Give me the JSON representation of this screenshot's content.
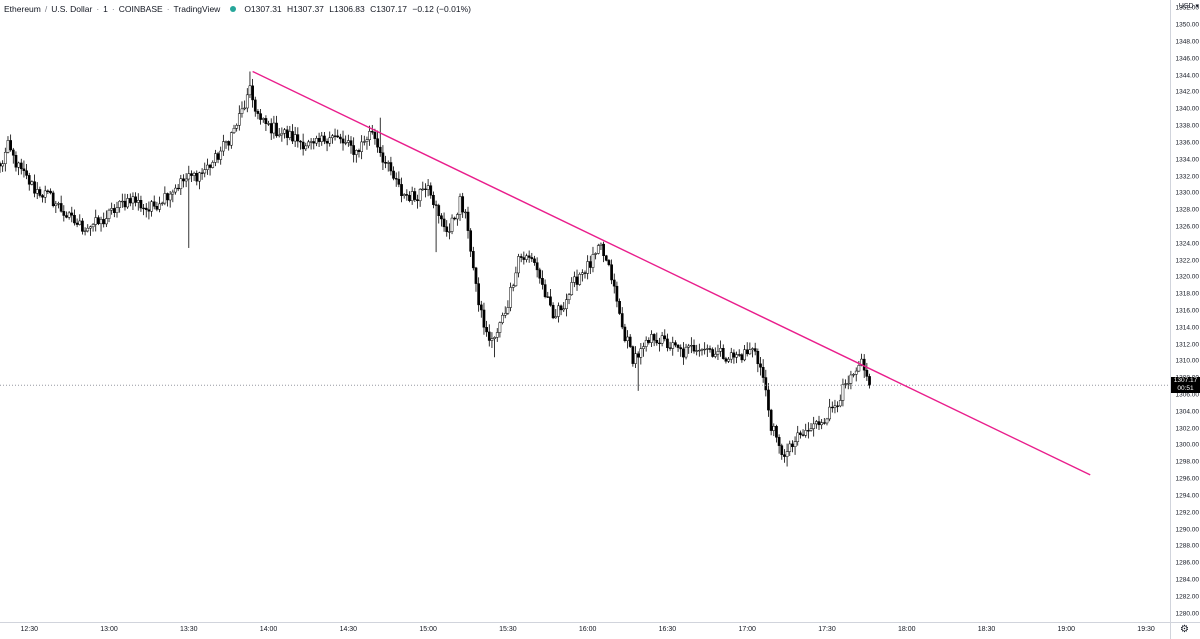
{
  "header": {
    "symbol": "Ethereum",
    "quote": "U.S. Dollar",
    "interval": "1",
    "exchange": "COINBASE",
    "source": "TradingView",
    "ohlc": {
      "open": "O1307.31",
      "high": "H1307.37",
      "low": "L1306.83",
      "close": "C1307.17",
      "change": "−0.12 (−0.01%)"
    }
  },
  "price_scale": {
    "currency": "USD",
    "last_price": "1307.17",
    "countdown": "00:51"
  },
  "colors": {
    "trendline": "#e91e8c",
    "candle": "#000000",
    "status_dot": "#26a69a",
    "last_price_line": "#9598a1"
  },
  "chart_data": {
    "type": "candlestick",
    "interval_minutes": 1,
    "x_range": [
      "12:19",
      "19:39"
    ],
    "ylim": [
      1279,
      1353
    ],
    "y_ticks": [
      "1280.00",
      "1282.00",
      "1284.00",
      "1286.00",
      "1288.00",
      "1290.00",
      "1292.00",
      "1294.00",
      "1296.00",
      "1298.00",
      "1300.00",
      "1302.00",
      "1304.00",
      "1306.00",
      "1308.00",
      "1310.00",
      "1312.00",
      "1314.00",
      "1316.00",
      "1318.00",
      "1320.00",
      "1322.00",
      "1324.00",
      "1326.00",
      "1328.00",
      "1330.00",
      "1332.00",
      "1334.00",
      "1336.00",
      "1338.00",
      "1340.00",
      "1342.00",
      "1344.00",
      "1346.00",
      "1348.00",
      "1350.00",
      "1352.00"
    ],
    "x_ticks": [
      "12:30",
      "13:00",
      "13:30",
      "14:00",
      "14:30",
      "15:00",
      "15:30",
      "16:00",
      "16:30",
      "17:00",
      "17:30",
      "18:00",
      "18:30",
      "19:00",
      "19:30"
    ],
    "start": "12:19",
    "end": "17:46",
    "anchors": [
      {
        "t": "12:19",
        "p": 1333.0
      },
      {
        "t": "12:22",
        "p": 1335.5
      },
      {
        "t": "12:26",
        "p": 1333.0
      },
      {
        "t": "12:32",
        "p": 1330.5
      },
      {
        "t": "12:38",
        "p": 1329.5
      },
      {
        "t": "12:45",
        "p": 1327.0
      },
      {
        "t": "12:50",
        "p": 1326.0
      },
      {
        "t": "12:57",
        "p": 1326.5
      },
      {
        "t": "13:02",
        "p": 1328.0
      },
      {
        "t": "13:08",
        "p": 1329.5
      },
      {
        "t": "13:15",
        "p": 1328.0
      },
      {
        "t": "13:22",
        "p": 1330.0
      },
      {
        "t": "13:28",
        "p": 1331.5
      },
      {
        "t": "13:35",
        "p": 1332.5
      },
      {
        "t": "13:40",
        "p": 1334.0
      },
      {
        "t": "13:47",
        "p": 1337.5
      },
      {
        "t": "13:53",
        "p": 1342.0
      },
      {
        "t": "13:57",
        "p": 1338.5
      },
      {
        "t": "14:03",
        "p": 1337.5
      },
      {
        "t": "14:10",
        "p": 1336.5
      },
      {
        "t": "14:17",
        "p": 1335.5
      },
      {
        "t": "14:23",
        "p": 1337.0
      },
      {
        "t": "14:28",
        "p": 1336.0
      },
      {
        "t": "14:33",
        "p": 1335.0
      },
      {
        "t": "14:39",
        "p": 1337.5
      },
      {
        "t": "14:44",
        "p": 1333.5
      },
      {
        "t": "14:50",
        "p": 1330.0
      },
      {
        "t": "14:55",
        "p": 1329.5
      },
      {
        "t": "15:00",
        "p": 1331.5
      },
      {
        "t": "15:04",
        "p": 1327.0
      },
      {
        "t": "15:08",
        "p": 1325.5
      },
      {
        "t": "15:12",
        "p": 1329.0
      },
      {
        "t": "15:15",
        "p": 1326.0
      },
      {
        "t": "15:18",
        "p": 1318.5
      },
      {
        "t": "15:22",
        "p": 1313.0
      },
      {
        "t": "15:25",
        "p": 1312.5
      },
      {
        "t": "15:30",
        "p": 1317.0
      },
      {
        "t": "15:34",
        "p": 1322.5
      },
      {
        "t": "15:40",
        "p": 1322.0
      },
      {
        "t": "15:44",
        "p": 1318.0
      },
      {
        "t": "15:47",
        "p": 1315.0
      },
      {
        "t": "15:52",
        "p": 1317.5
      },
      {
        "t": "15:57",
        "p": 1320.5
      },
      {
        "t": "16:01",
        "p": 1321.5
      },
      {
        "t": "16:05",
        "p": 1323.5
      },
      {
        "t": "16:09",
        "p": 1320.0
      },
      {
        "t": "16:13",
        "p": 1314.0
      },
      {
        "t": "16:17",
        "p": 1310.5
      },
      {
        "t": "16:20",
        "p": 1311.0
      },
      {
        "t": "16:25",
        "p": 1313.0
      },
      {
        "t": "16:30",
        "p": 1312.0
      },
      {
        "t": "16:36",
        "p": 1311.0
      },
      {
        "t": "16:42",
        "p": 1312.0
      },
      {
        "t": "16:49",
        "p": 1311.0
      },
      {
        "t": "16:55",
        "p": 1310.5
      },
      {
        "t": "17:00",
        "p": 1311.0
      },
      {
        "t": "17:03",
        "p": 1311.5
      },
      {
        "t": "17:06",
        "p": 1308.0
      },
      {
        "t": "17:09",
        "p": 1302.5
      },
      {
        "t": "17:12",
        "p": 1299.5
      },
      {
        "t": "17:15",
        "p": 1299.0
      },
      {
        "t": "17:18",
        "p": 1300.5
      },
      {
        "t": "17:22",
        "p": 1301.5
      },
      {
        "t": "17:26",
        "p": 1302.5
      },
      {
        "t": "17:31",
        "p": 1304.0
      },
      {
        "t": "17:36",
        "p": 1306.5
      },
      {
        "t": "17:40",
        "p": 1308.0
      },
      {
        "t": "17:43",
        "p": 1309.5
      },
      {
        "t": "17:46",
        "p": 1307.17
      }
    ],
    "spikes": [
      {
        "t": "13:30",
        "low": 1323.5
      },
      {
        "t": "13:53",
        "high": 1344.5
      },
      {
        "t": "14:42",
        "high": 1339.0
      },
      {
        "t": "15:03",
        "low": 1323.0
      },
      {
        "t": "15:25",
        "low": 1310.5
      },
      {
        "t": "16:19",
        "low": 1306.5
      },
      {
        "t": "17:15",
        "low": 1297.5
      }
    ],
    "trendline": {
      "from": {
        "t": "13:54",
        "p": 1344.5
      },
      "to": {
        "t": "19:09",
        "p": 1296.5
      }
    },
    "last_price": 1307.17
  }
}
